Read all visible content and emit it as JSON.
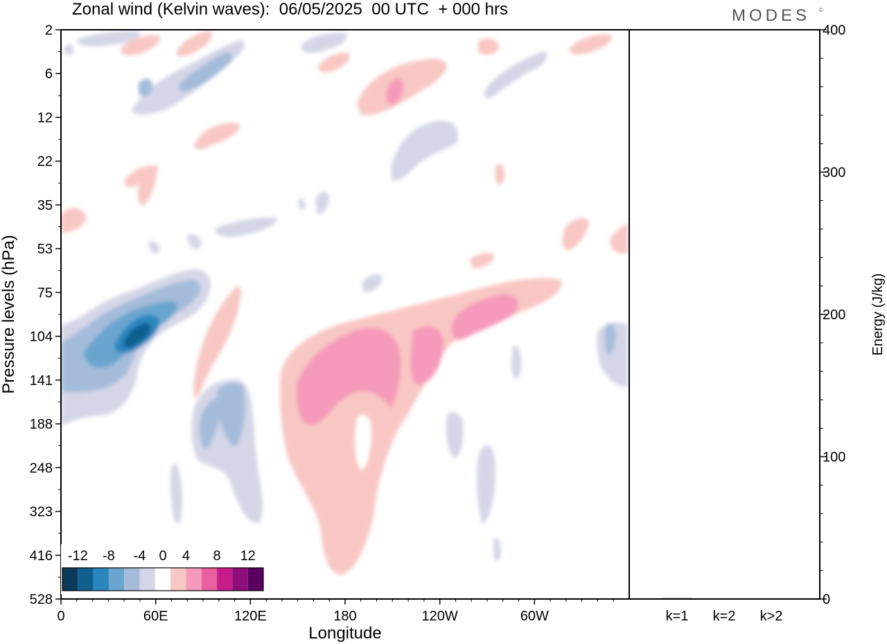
{
  "title": "Zonal wind (Kelvin waves):  06/05/2025  00 UTC  + 000 hrs",
  "brand": "MODES",
  "brand_mark": "©",
  "chart_data": [
    {
      "type": "heatmap",
      "title": "Zonal wind (Kelvin waves):  06/05/2025  00 UTC  + 000 hrs",
      "xlabel": "Longitude",
      "ylabel": "Pressure levels (hPa)",
      "x_ticks": [
        "0",
        "60E",
        "120E",
        "180",
        "120W",
        "60W"
      ],
      "x_tick_values": [
        0,
        60,
        120,
        180,
        240,
        300
      ],
      "xlim": [
        0,
        360
      ],
      "y_ticks": [
        "2",
        "6",
        "12",
        "22",
        "35",
        "53",
        "75",
        "104",
        "141",
        "188",
        "248",
        "323",
        "416",
        "528"
      ],
      "y_scale": "ordinal pressure levels, top to bottom",
      "colorbar": {
        "labels": [
          "-12",
          "-8",
          "-4",
          "0",
          "4",
          "8",
          "12"
        ],
        "levels": [
          -14,
          -12,
          -10,
          -8,
          -6,
          -4,
          -2,
          2,
          4,
          6,
          8,
          10,
          12,
          14
        ],
        "colors": [
          "#0b3a5a",
          "#0f5f8f",
          "#2c86be",
          "#6aa5cf",
          "#a4bcda",
          "#d4d6e7",
          "#ffffff",
          "#f8c7c3",
          "#f59aba",
          "#e8609e",
          "#c61d8b",
          "#8e0e7a",
          "#5a0060"
        ]
      },
      "features": [
        {
          "label": "easterly core",
          "lon": 40,
          "level": "104",
          "value": -11
        },
        {
          "label": "easterly anomaly",
          "lon": 95,
          "level": "188",
          "value": -7
        },
        {
          "label": "westerly core",
          "lon": 175,
          "level": "141",
          "value": 6
        },
        {
          "label": "westerly anomaly",
          "lon": 235,
          "level": "104",
          "value": 6
        },
        {
          "label": "westerly anomaly",
          "lon": 275,
          "level": "75",
          "value": 5
        },
        {
          "label": "upper westerly",
          "lon": 212,
          "level": "6",
          "value": 5
        },
        {
          "label": "upper easterly",
          "lon": 230,
          "level": "22",
          "value": -3
        },
        {
          "label": "upper easterly",
          "lon": 30,
          "level": "6",
          "value": -7
        }
      ]
    },
    {
      "type": "bar",
      "categories": [
        "k=1",
        "k=2",
        "k>2"
      ],
      "values": [
        0.6,
        0.2,
        0.4
      ],
      "ylabel": "Energy (J/kg)",
      "ylim": [
        0,
        400
      ],
      "y_ticks": [
        "0",
        "100",
        "200",
        "300",
        "400"
      ],
      "y_tick_values": [
        0,
        100,
        200,
        300,
        400
      ]
    }
  ]
}
